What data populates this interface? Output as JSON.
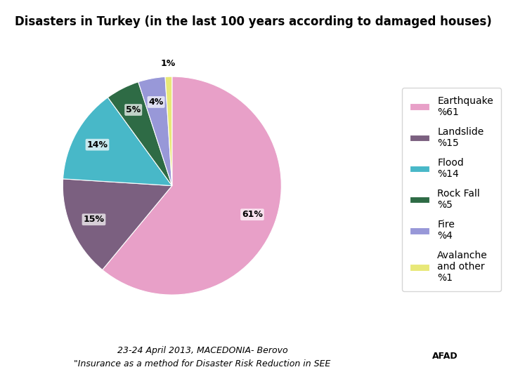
{
  "chart_data": {
    "type": "pie",
    "title": "Disasters in Turkey (in the last 100 years according to damaged houses)",
    "categories": [
      "Earthquake\n%61",
      "Landslide\n%15",
      "Flood\n%14",
      "Rock Fall\n%5",
      "Fire\n%4",
      "Avalanche\nand other\n%1"
    ],
    "values": [
      61,
      15,
      14,
      5,
      4,
      1
    ],
    "value_labels": [
      "61%",
      "15%",
      "14%",
      "5%",
      "4%",
      "1%"
    ],
    "colors": [
      "#E8A0C8",
      "#7B6080",
      "#48B8C8",
      "#2E6B45",
      "#9898D8",
      "#E8E878"
    ],
    "legend": "right",
    "annotations": [
      "23-24 April 2013, MACEDONIA- Berovo",
      "\"Insurance as a method for Disaster Risk Reduction in SEE",
      "AFAD"
    ]
  }
}
